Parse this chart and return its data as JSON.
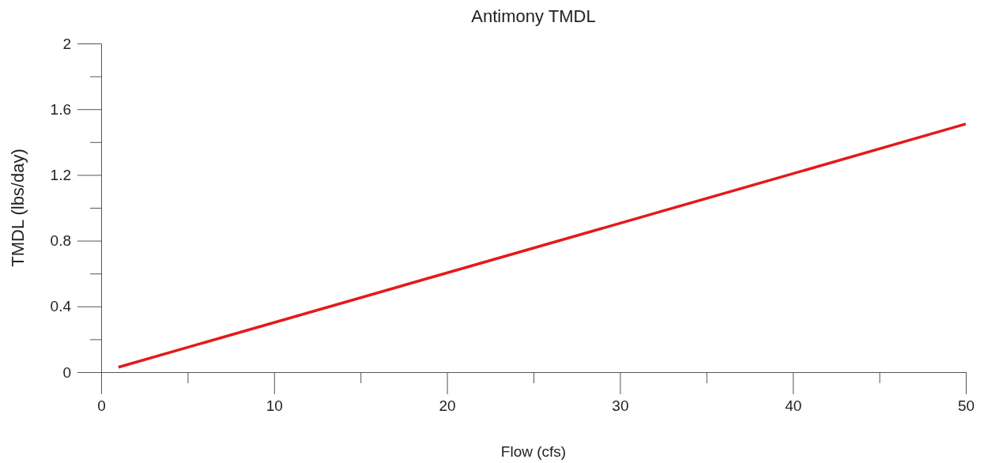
{
  "chart_data": {
    "type": "line",
    "title": "Antimony TMDL",
    "xlabel": "Flow (cfs)",
    "ylabel": "TMDL (lbs/day)",
    "x": [
      1,
      50
    ],
    "series": [
      {
        "color": "#e31a1c",
        "values": [
          0.03,
          1.51
        ]
      }
    ],
    "xlim": [
      0,
      50
    ],
    "ylim": [
      0,
      2
    ],
    "xticks": [
      0,
      {
        "value": 5,
        "label": null
      },
      10,
      {
        "value": 15,
        "label": null
      },
      20,
      {
        "value": 25,
        "label": null
      },
      30,
      {
        "value": 35,
        "label": null
      },
      40,
      {
        "value": 45,
        "label": null
      },
      50
    ],
    "yticks": [
      0,
      {
        "value": 0.2,
        "label": null
      },
      0.4,
      {
        "value": 0.6,
        "label": null
      },
      0.8,
      {
        "value": 1,
        "label": null
      },
      1.2,
      {
        "value": 1.4,
        "label": null
      },
      1.6,
      {
        "value": 1.8,
        "label": null
      },
      2
    ],
    "marker": "none",
    "line_style": "solid"
  }
}
